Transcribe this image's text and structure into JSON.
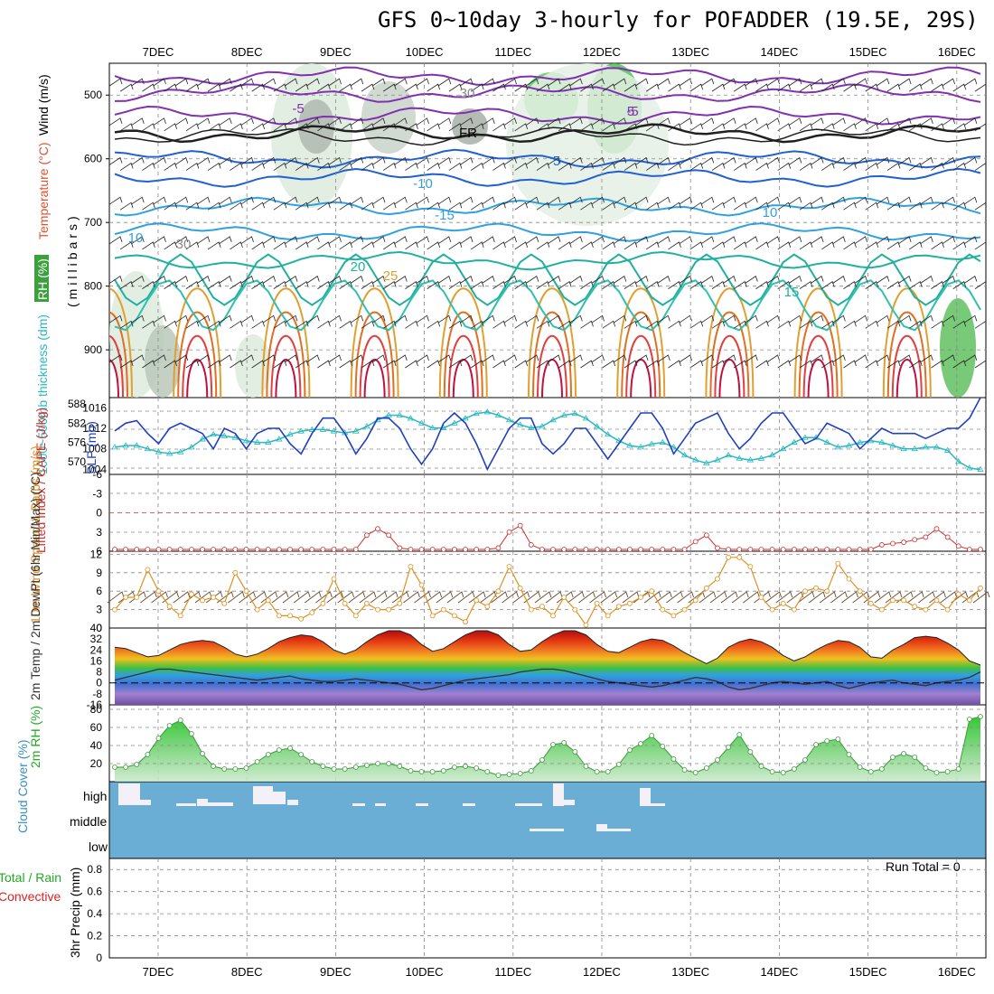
{
  "title": "GFS 0~10day 3-hourly for POFADDER (19.5E, 29S)",
  "colors": {
    "wind": "#000000",
    "temperature": "#e05030",
    "rh": "#3c9a3c",
    "slp": "#2040c0",
    "thickness": "#2ab8c0",
    "lifted_index": "#d03030",
    "cape": "#b060d0",
    "speed": "#e09020",
    "dewpoint": "#333333",
    "cloud_blue": "#6aaed6",
    "rain_green": "#22aa22",
    "convective_red": "#e02020"
  },
  "chart_data": [
    {
      "panel": "upper_air",
      "type": "contour",
      "ylabel_parts": [
        "Wind (m/s)",
        "Temperature (°C)",
        "(millibars)",
        "RH (%)"
      ],
      "y_ticks": [
        "500",
        "600",
        "700",
        "800",
        "900"
      ],
      "yrange_mb": [
        450,
        975
      ],
      "contour_labels": [
        "-5",
        "-5",
        "5",
        "5",
        "-10",
        "10",
        "10",
        "-15",
        "15",
        "20",
        "25",
        "30",
        "30",
        "FR"
      ]
    },
    {
      "panel": "slp_thickness",
      "type": "line",
      "ylabel_left": "1000~500mb thickness (dm)",
      "ylabel_right": "SLP (mb)",
      "left_ticks": [
        "588",
        "582",
        "576",
        "570"
      ],
      "right_ticks": [
        "1016",
        "1012",
        "1008",
        "1004"
      ],
      "series": [
        {
          "name": "SLP (mb)",
          "values": [
            1011.5,
            1013,
            1013.5,
            1011,
            1009,
            1012,
            1013,
            1012,
            1011,
            1008,
            1012,
            1011,
            1008,
            1011,
            1012,
            1012,
            1009,
            1007,
            1011,
            1014,
            1014,
            1011,
            1007,
            1010,
            1014,
            1014,
            1012,
            1008,
            1005,
            1008,
            1013,
            1015,
            1013,
            1009,
            1004,
            1008,
            1012,
            1014,
            1014,
            1009,
            1007,
            1009,
            1012,
            1012,
            1009,
            1006,
            1009,
            1012,
            1015,
            1015,
            1012,
            1007,
            1010,
            1013,
            1014,
            1015,
            1011,
            1008,
            1010,
            1013,
            1015,
            1015,
            1012,
            1009,
            1010,
            1013,
            1012,
            1011,
            1008,
            1010,
            1012,
            1011,
            1011,
            1011,
            1010,
            1011,
            1012,
            1012,
            1014,
            1018
          ]
        },
        {
          "name": "thickness (dm)",
          "values": [
            574.5,
            575,
            575,
            574,
            573,
            572.5,
            573,
            574.5,
            577,
            578.5,
            578,
            577.5,
            576.5,
            576,
            576,
            577,
            578.5,
            579.5,
            580,
            580,
            579.5,
            579,
            579.5,
            581,
            583,
            584.5,
            584.5,
            583.5,
            582,
            580.5,
            580.5,
            582,
            583.5,
            585,
            585.5,
            584.5,
            583,
            581.5,
            580.5,
            581,
            583,
            584.5,
            585,
            583.5,
            581,
            578.5,
            576.5,
            575,
            574.5,
            575.5,
            576,
            574.5,
            572,
            570.5,
            569.5,
            570.5,
            572,
            571,
            570.5,
            571,
            572,
            574,
            576,
            577.5,
            577.5,
            576,
            574.5,
            575,
            576,
            576.5,
            576,
            575,
            574,
            574,
            574.5,
            574.5,
            573.5,
            570,
            568,
            567.5
          ]
        }
      ]
    },
    {
      "panel": "cape_li",
      "type": "line",
      "ylabel": "Lifted Index / CAPE (J/kg)",
      "y_ticks": [
        "-6",
        "-3",
        "0",
        "3",
        "6"
      ],
      "ylim": [
        -6,
        6
      ],
      "series": [
        {
          "name": "Lifted Index",
          "values": [
            6.5,
            6.5,
            6.5,
            6.5,
            6.5,
            6.5,
            6.5,
            6.5,
            6.2,
            6.4,
            6.5,
            6.5,
            6.5,
            6.5,
            6.5,
            6.5,
            6.5,
            6.5,
            6.5,
            6.5,
            6.5,
            6.5,
            6.5,
            3.5,
            2.5,
            3.5,
            5.5,
            6.5,
            6.5,
            6.5,
            6.5,
            6.5,
            6.5,
            6.5,
            6.5,
            5.5,
            3,
            2,
            5,
            6.5,
            6.5,
            6.5,
            6.5,
            6.5,
            6.5,
            6.5,
            6.5,
            6.5,
            6.5,
            6.5,
            6.5,
            6.5,
            6,
            4.5,
            3.5,
            5.5,
            6.5,
            6.5,
            6.5,
            6.5,
            6.5,
            6.5,
            6.5,
            6.5,
            6.5,
            6.5,
            6.5,
            6.5,
            6.5,
            6.5,
            5,
            4.8,
            4.6,
            4.2,
            3.8,
            2.5,
            3.8,
            5.2,
            6.2,
            6.5
          ]
        }
      ]
    },
    {
      "panel": "wind10m",
      "type": "line",
      "ylabel": "10m Wind Speed & Barbs (m/s)",
      "y_ticks": [
        "0",
        "3",
        "6",
        "9",
        "12"
      ],
      "ylim": [
        0,
        12.5
      ],
      "series": [
        {
          "name": "Speed (m/s)",
          "values": [
            3,
            5,
            5,
            9.5,
            6,
            3.5,
            2,
            5.5,
            4.5,
            5,
            4,
            9,
            6,
            3,
            4.5,
            2,
            2,
            1.5,
            2.5,
            4,
            8,
            4,
            2,
            4,
            3,
            3,
            4,
            10,
            7,
            2,
            3,
            2,
            1,
            4.5,
            3.5,
            6,
            10,
            6.5,
            3,
            3.5,
            2,
            5,
            3,
            0.5,
            4,
            2,
            3.5,
            4,
            5,
            6,
            3,
            2,
            3,
            4.5,
            6.5,
            8,
            11.5,
            11.5,
            10,
            5,
            3,
            4,
            3,
            6,
            6.5,
            6,
            10.5,
            8,
            6,
            4,
            3,
            4.5,
            4.5,
            3.5,
            3,
            4.5,
            3,
            5.5,
            4.5,
            6.5
          ]
        }
      ]
    },
    {
      "panel": "temp2m",
      "type": "area",
      "ylabel": "2m Temp / 2m DewPt (6hr Min/Max) (°C)",
      "y_ticks": [
        "40",
        "32",
        "24",
        "16",
        "8",
        "0",
        "-8",
        "-16"
      ],
      "ylim": [
        -16,
        40
      ],
      "series": [
        {
          "name": "2m Temp",
          "values": [
            26,
            25,
            22,
            19,
            20,
            24,
            28,
            30,
            31,
            30,
            26,
            21,
            19,
            21,
            25,
            30,
            33,
            35,
            34,
            30,
            24,
            21,
            24,
            30,
            35,
            38,
            38,
            35,
            28,
            23,
            25,
            30,
            35,
            38,
            38,
            35,
            28,
            23,
            24,
            30,
            35,
            38,
            38,
            35,
            28,
            23,
            22,
            26,
            30,
            32,
            31,
            27,
            22,
            18,
            14,
            18,
            26,
            30,
            32,
            30,
            26,
            20,
            16,
            19,
            24,
            28,
            31,
            30,
            26,
            19,
            18,
            24,
            28,
            33,
            34,
            33,
            29,
            24,
            16,
            13
          ]
        },
        {
          "name": "2m DewPt",
          "values": [
            2,
            4,
            6,
            8,
            10,
            10,
            9,
            8,
            7,
            6,
            5,
            4,
            3,
            2,
            3,
            4,
            5,
            3,
            2,
            1,
            1,
            2,
            3,
            2,
            1,
            0,
            -1,
            -3,
            -5,
            -4,
            -2,
            0,
            2,
            3,
            4,
            5,
            6,
            8,
            9,
            10,
            10,
            9,
            7,
            5,
            3,
            1,
            0,
            -1,
            -2,
            -3,
            -2,
            0,
            2,
            4,
            3,
            1,
            -3,
            -5,
            -4,
            -2,
            0,
            1,
            0,
            -1,
            0,
            1,
            -2,
            -4,
            -2,
            0,
            1,
            2,
            0,
            -1,
            -2,
            0,
            1,
            2,
            4,
            8
          ]
        }
      ]
    },
    {
      "panel": "rh2m",
      "type": "line",
      "ylabel": "2m RH (%)",
      "y_ticks": [
        "20",
        "40",
        "60",
        "80"
      ],
      "ylim": [
        0,
        85
      ],
      "series": [
        {
          "name": "2m RH",
          "values": [
            16,
            16,
            19,
            30,
            48,
            62,
            68,
            53,
            31,
            17,
            14,
            14,
            15,
            22,
            30,
            35,
            37,
            30,
            22,
            17,
            14,
            14,
            16,
            18,
            20,
            20,
            17,
            12,
            11,
            11,
            12,
            16,
            17,
            15,
            11,
            7,
            8,
            9,
            12,
            24,
            41,
            43,
            33,
            17,
            11,
            11,
            19,
            35,
            42,
            51,
            39,
            25,
            13,
            10,
            15,
            24,
            38,
            52,
            33,
            17,
            11,
            10,
            14,
            24,
            41,
            45,
            47,
            30,
            16,
            11,
            14,
            27,
            31,
            27,
            15,
            10,
            11,
            14,
            69,
            72
          ]
        }
      ]
    },
    {
      "panel": "cloud",
      "type": "area",
      "ylabel": "Cloud Cover (%)",
      "levels": [
        "high",
        "middle",
        "low"
      ]
    },
    {
      "panel": "precip",
      "type": "bar",
      "ylabel_parts": [
        "Total / Rain",
        "Convective",
        "3hr Precip (mm)"
      ],
      "y_ticks": [
        "0",
        "0.2",
        "0.4",
        "0.6",
        "0.8"
      ],
      "ylim": [
        0,
        0.9
      ],
      "run_total": "Run Total = 0"
    }
  ],
  "x_axis": {
    "dates": [
      "7DEC",
      "8DEC",
      "9DEC",
      "10DEC",
      "11DEC",
      "12DEC",
      "13DEC",
      "14DEC",
      "15DEC",
      "16DEC"
    ]
  }
}
